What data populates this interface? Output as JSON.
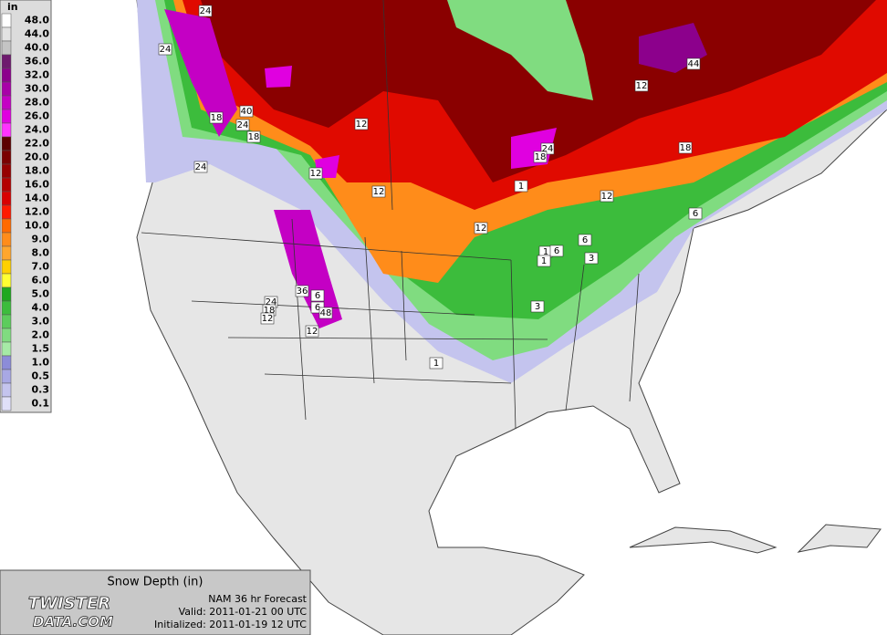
{
  "legend": {
    "unit": "in",
    "levels": [
      {
        "label": "48.0",
        "color": "#ffffff"
      },
      {
        "label": "44.0",
        "color": "#e2e2e2"
      },
      {
        "label": "40.0",
        "color": "#c4c4c4"
      },
      {
        "label": "36.0",
        "color": "#6e1a6e"
      },
      {
        "label": "32.0",
        "color": "#8c008c"
      },
      {
        "label": "30.0",
        "color": "#a800a8"
      },
      {
        "label": "28.0",
        "color": "#c400c4"
      },
      {
        "label": "26.0",
        "color": "#e000e0"
      },
      {
        "label": "24.0",
        "color": "#ff33ff"
      },
      {
        "label": "22.0",
        "color": "#5c0000"
      },
      {
        "label": "20.0",
        "color": "#7a0000"
      },
      {
        "label": "18.0",
        "color": "#960000"
      },
      {
        "label": "16.0",
        "color": "#b40000"
      },
      {
        "label": "14.0",
        "color": "#d80000"
      },
      {
        "label": "12.0",
        "color": "#ff1a00"
      },
      {
        "label": "10.0",
        "color": "#ff6a00"
      },
      {
        "label": "9.0",
        "color": "#ff8c1a"
      },
      {
        "label": "8.0",
        "color": "#ffa62e"
      },
      {
        "label": "7.0",
        "color": "#ffd000"
      },
      {
        "label": "6.0",
        "color": "#ffff33"
      },
      {
        "label": "5.0",
        "color": "#1fa81f"
      },
      {
        "label": "4.0",
        "color": "#3cbc3c"
      },
      {
        "label": "3.0",
        "color": "#5ccc5c"
      },
      {
        "label": "2.0",
        "color": "#80dc80"
      },
      {
        "label": "1.5",
        "color": "#a6eaa6"
      },
      {
        "label": "1.0",
        "color": "#8c8cd8"
      },
      {
        "label": "0.5",
        "color": "#a8a8e4"
      },
      {
        "label": "0.3",
        "color": "#c4c4ee"
      },
      {
        "label": "0.1",
        "color": "#e0e0f8"
      }
    ]
  },
  "info": {
    "title": "Snow Depth (in)",
    "logo_top": "TWISTER",
    "logo_bottom": "DATA.COM",
    "model": "NAM 36 hr Forecast",
    "valid": "Valid: 2011-01-21 00 UTC",
    "initialized": "Initialized: 2011-01-19 12 UTC"
  },
  "contour_labels": [
    "24",
    "24",
    "40",
    "18",
    "24",
    "18",
    "24",
    "12",
    "12",
    "12",
    "24",
    "18",
    "1",
    "12",
    "12",
    "6",
    "1",
    "6",
    "6",
    "3",
    "1",
    "3",
    "12",
    "18",
    "6",
    "44",
    "36",
    "24",
    "18",
    "12",
    "6",
    "48",
    "12",
    "1"
  ]
}
